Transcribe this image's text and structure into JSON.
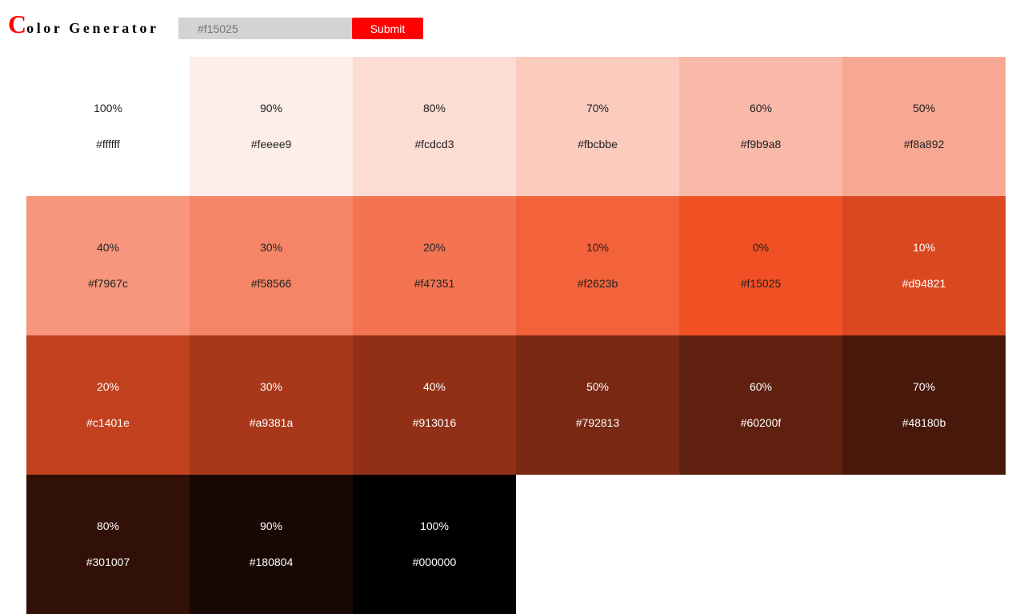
{
  "header": {
    "logo_first_letter": "C",
    "logo_rest": "olor Generator",
    "logo_accent_color": "#ff0000"
  },
  "search": {
    "value": "",
    "placeholder": "#f15025"
  },
  "submit_label": "Submit",
  "swatches": [
    {
      "weight": "100%",
      "hex": "#ffffff",
      "text_color": "#222222"
    },
    {
      "weight": "90%",
      "hex": "#feeee9",
      "text_color": "#222222"
    },
    {
      "weight": "80%",
      "hex": "#fcdcd3",
      "text_color": "#222222"
    },
    {
      "weight": "70%",
      "hex": "#fbcbbe",
      "text_color": "#222222"
    },
    {
      "weight": "60%",
      "hex": "#f9b9a8",
      "text_color": "#222222"
    },
    {
      "weight": "50%",
      "hex": "#f8a892",
      "text_color": "#222222"
    },
    {
      "weight": "40%",
      "hex": "#f7967c",
      "text_color": "#222222"
    },
    {
      "weight": "30%",
      "hex": "#f58566",
      "text_color": "#222222"
    },
    {
      "weight": "20%",
      "hex": "#f47351",
      "text_color": "#222222"
    },
    {
      "weight": "10%",
      "hex": "#f2623b",
      "text_color": "#222222"
    },
    {
      "weight": "0%",
      "hex": "#f15025",
      "text_color": "#222222"
    },
    {
      "weight": "10%",
      "hex": "#d94821",
      "text_color": "#ffffff"
    },
    {
      "weight": "20%",
      "hex": "#c1401e",
      "text_color": "#ffffff"
    },
    {
      "weight": "30%",
      "hex": "#a9381a",
      "text_color": "#ffffff"
    },
    {
      "weight": "40%",
      "hex": "#913016",
      "text_color": "#ffffff"
    },
    {
      "weight": "50%",
      "hex": "#792813",
      "text_color": "#ffffff"
    },
    {
      "weight": "60%",
      "hex": "#60200f",
      "text_color": "#ffffff"
    },
    {
      "weight": "70%",
      "hex": "#48180b",
      "text_color": "#ffffff"
    },
    {
      "weight": "80%",
      "hex": "#301007",
      "text_color": "#ffffff"
    },
    {
      "weight": "90%",
      "hex": "#180804",
      "text_color": "#ffffff"
    },
    {
      "weight": "100%",
      "hex": "#000000",
      "text_color": "#ffffff"
    }
  ]
}
